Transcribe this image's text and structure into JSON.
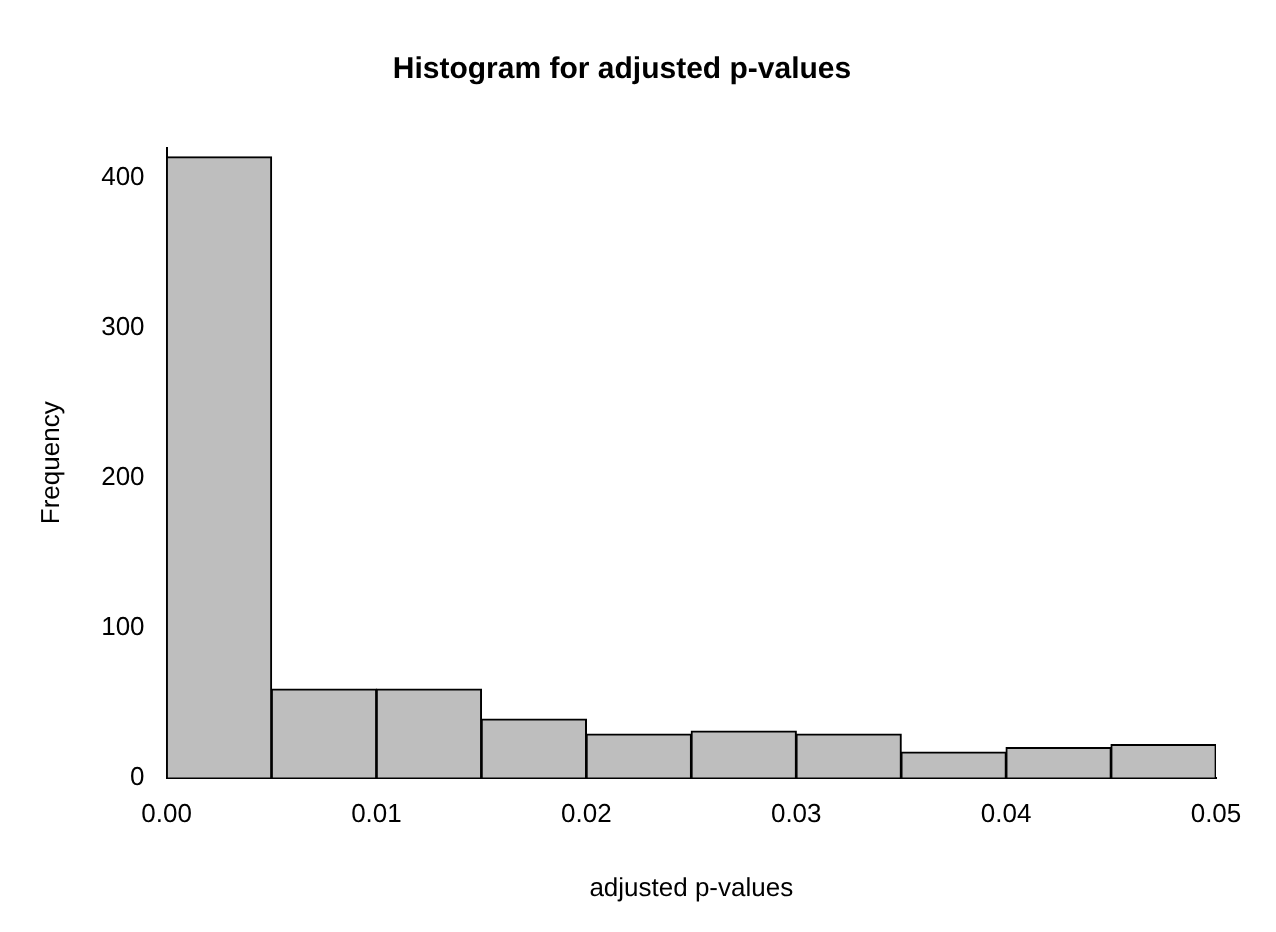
{
  "chart_data": {
    "type": "histogram",
    "title": "Histogram for adjusted p-values",
    "xlabel": "adjusted p-values",
    "ylabel": "Frequency",
    "bins": [
      0,
      0.005,
      0.01,
      0.015,
      0.02,
      0.025,
      0.03,
      0.035,
      0.04,
      0.045,
      0.05
    ],
    "values": [
      414,
      59,
      59,
      39,
      29,
      31,
      29,
      17,
      20,
      22
    ],
    "color": "#bebebe",
    "xlim": [
      0,
      0.05
    ],
    "xticks": [
      {
        "value": 0,
        "label": "0.00"
      },
      {
        "value": 0.01,
        "label": "0.01"
      },
      {
        "value": 0.02,
        "label": "0.02"
      },
      {
        "value": 0.03,
        "label": "0.03"
      },
      {
        "value": 0.04,
        "label": "0.04"
      },
      {
        "value": 0.05,
        "label": "0.05"
      }
    ],
    "ylim": [
      0,
      420
    ],
    "yticks": [
      0,
      100,
      200,
      300,
      400
    ],
    "grid": false,
    "legend": false
  }
}
